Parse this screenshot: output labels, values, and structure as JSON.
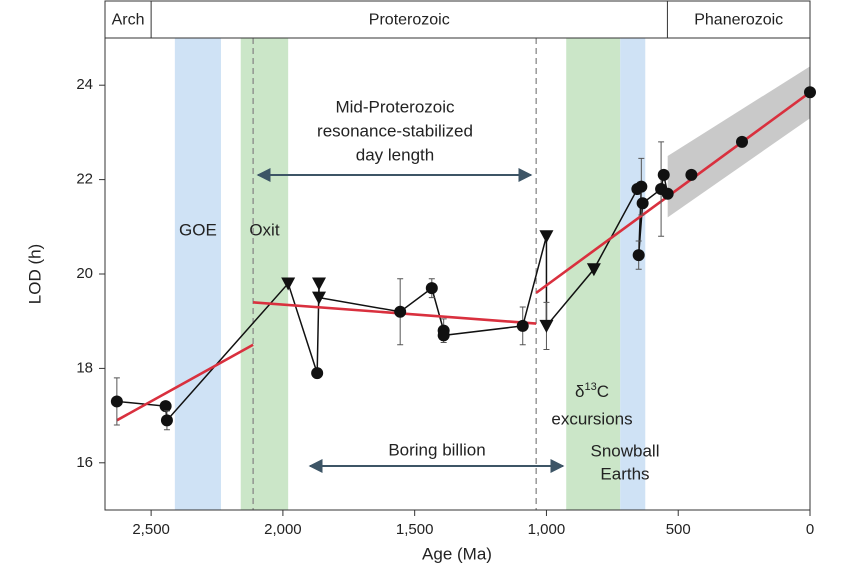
{
  "chart_data": {
    "type": "line",
    "x_label": "Age (Ma)",
    "y_label": "LOD (h)",
    "xlim": [
      2675,
      0
    ],
    "ylim": [
      15,
      25
    ],
    "xticks": [
      {
        "value": 2500,
        "label": "2,500"
      },
      {
        "value": 2000,
        "label": "2,000"
      },
      {
        "value": 1500,
        "label": "1,500"
      },
      {
        "value": 1000,
        "label": "1,000"
      },
      500,
      0
    ],
    "yticks": [
      16,
      18,
      20,
      22,
      24
    ],
    "eras": [
      {
        "label": "Arch",
        "from": 2675,
        "to": 2500
      },
      {
        "label": "Proterozoic",
        "from": 2500,
        "to": 541
      },
      {
        "label": "Phanerozoic",
        "from": 541,
        "to": 0
      }
    ],
    "spans": [
      {
        "label": "GOE",
        "from": 2410,
        "to": 2235,
        "color": "#cfe2f5"
      },
      {
        "label": "Oxit",
        "from": 2160,
        "to": 1980,
        "color": "#cbe6c8"
      },
      {
        "from": 925,
        "to": 720,
        "color": "#cbe6c8"
      },
      {
        "from": 720,
        "to": 625,
        "color": "#cfe2f5"
      }
    ],
    "dashed_lines": [
      2113,
      1039
    ],
    "uncertainty_band": {
      "color": "#c9c9c9",
      "x": [
        540,
        0
      ],
      "upper": [
        22.5,
        24.4
      ],
      "lower": [
        21.2,
        23.3
      ]
    },
    "series": [
      {
        "color": "#111111",
        "line": true,
        "x": [
          2630,
          2445,
          2440,
          1980,
          1870,
          1863,
          1863,
          1555,
          1435,
          1390,
          1390,
          1090,
          1000,
          1000,
          820,
          655,
          640,
          650,
          635,
          565,
          555,
          540
        ],
        "y": [
          17.3,
          17.2,
          16.9,
          19.8,
          17.9,
          19.8,
          19.5,
          19.2,
          19.7,
          18.8,
          18.7,
          18.9,
          20.8,
          18.9,
          20.1,
          21.8,
          21.85,
          20.4,
          21.5,
          21.8,
          22.1,
          21.7
        ],
        "errors": [
          0.5,
          null,
          0.2,
          null,
          null,
          null,
          null,
          0.7,
          0.2,
          0.25,
          null,
          0.4,
          null,
          0.5,
          null,
          null,
          0.6,
          0.3,
          null,
          1.0,
          null,
          null
        ],
        "markers": [
          "circle",
          "circle",
          "circle",
          "triangle",
          "circle",
          "triangle",
          "triangle",
          "circle",
          "circle",
          "circle",
          "circle",
          "circle",
          "triangle",
          "triangle",
          "triangle",
          "circle",
          "circle",
          "circle",
          "circle",
          "circle",
          "circle",
          "circle"
        ]
      },
      {
        "color": "#111111",
        "line": false,
        "x": [
          450,
          258,
          0
        ],
        "y": [
          22.1,
          22.8,
          23.85
        ],
        "errors": [
          null,
          null,
          null
        ],
        "markers": [
          "circle",
          "circle",
          "circle"
        ]
      },
      {
        "color": "#d9303e",
        "line": true,
        "x": [
          2630,
          2113
        ],
        "y": [
          16.9,
          18.5
        ]
      },
      {
        "color": "#d9303e",
        "line": true,
        "x": [
          2113,
          1039
        ],
        "y": [
          19.4,
          18.95
        ]
      },
      {
        "color": "#d9303e",
        "line": true,
        "x": [
          1039,
          0
        ],
        "y": [
          19.6,
          23.85
        ]
      }
    ],
    "annotations": {
      "mid_proterozoic": [
        "Mid-Proterozoic",
        "resonance-stabilized",
        "day length"
      ],
      "boring_billion": "Boring billion",
      "carbon": {
        "symbol": "δ",
        "sup": "13",
        "rest": "C",
        "line2": "excursions"
      },
      "snowball": [
        "Snowball",
        "Earths"
      ]
    }
  }
}
